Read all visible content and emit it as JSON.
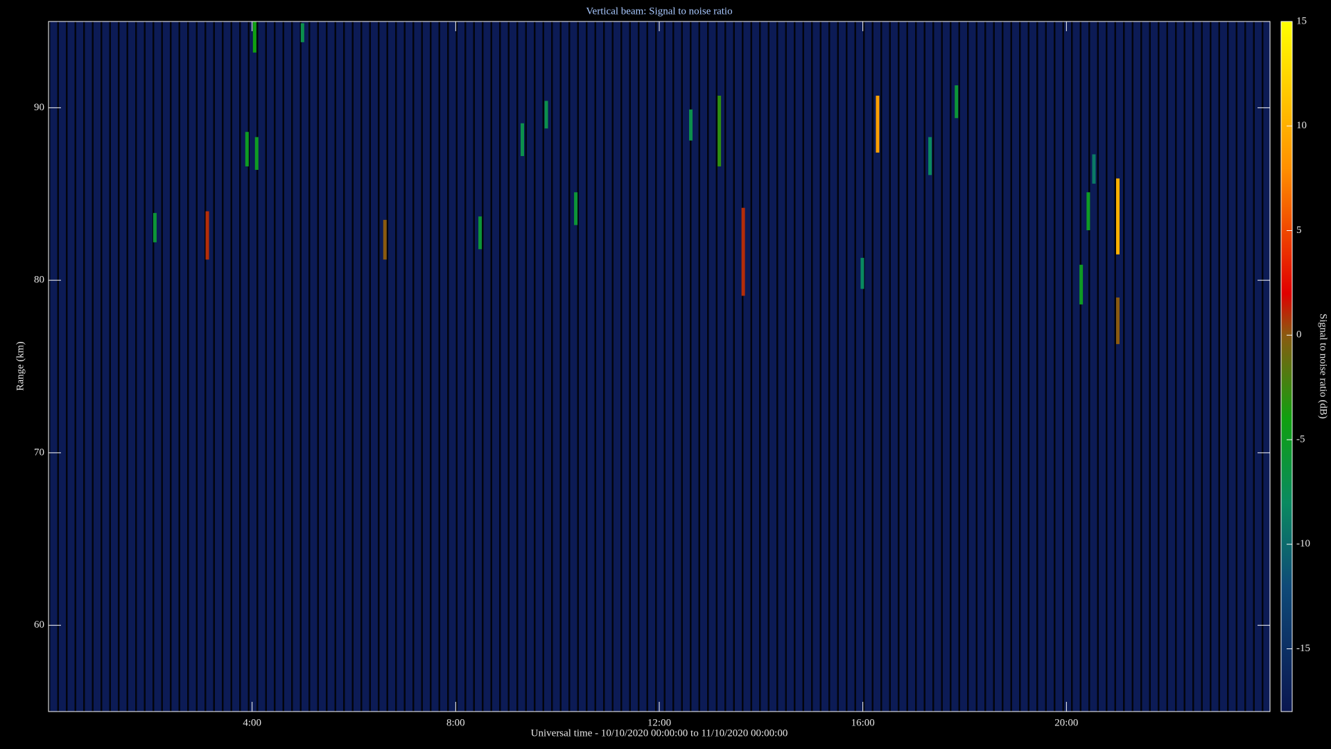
{
  "chart_data": {
    "type": "heatmap",
    "title": "Vertical beam: Signal to noise ratio",
    "x_label": "Universal time - 10/10/2020 00:00:00 to 11/10/2020 00:00:00",
    "y_label": "Range (km)",
    "colorbar_label": "Signal to noise ratio (dB)",
    "xlim": [
      0,
      24
    ],
    "xticks": [
      {
        "value": 4,
        "label": "4:00"
      },
      {
        "value": 8,
        "label": "8:00"
      },
      {
        "value": 12,
        "label": "12:00"
      },
      {
        "value": 16,
        "label": "16:00"
      },
      {
        "value": 20,
        "label": "20:00"
      }
    ],
    "ylim": [
      55,
      95
    ],
    "yticks": [
      60,
      70,
      80,
      90
    ],
    "clim": [
      -18,
      15
    ],
    "cticks": [
      -15,
      -10,
      -5,
      0,
      5,
      10,
      15
    ],
    "background_color": "#0c1b55",
    "colormap": [
      {
        "value": -18,
        "color": "#0a1650"
      },
      {
        "value": -12,
        "color": "#0f4a78"
      },
      {
        "value": -8,
        "color": "#0a8a60"
      },
      {
        "value": -4,
        "color": "#10a010"
      },
      {
        "value": 0,
        "color": "#8a5a10"
      },
      {
        "value": 2,
        "color": "#e00000"
      },
      {
        "value": 8,
        "color": "#ff9000"
      },
      {
        "value": 15,
        "color": "#ffff00"
      }
    ],
    "segments": [
      {
        "time": 2.09,
        "range": [
          82.2,
          83.9
        ],
        "snr": -6
      },
      {
        "time": 3.12,
        "range": [
          81.2,
          84.0
        ],
        "snr": 1
      },
      {
        "time": 3.9,
        "range": [
          86.6,
          88.6
        ],
        "snr": -5
      },
      {
        "time": 4.09,
        "range": [
          86.4,
          88.3
        ],
        "snr": -5
      },
      {
        "time": 4.05,
        "range": [
          93.2,
          95.0
        ],
        "snr": -4
      },
      {
        "time": 4.99,
        "range": [
          93.8,
          94.9
        ],
        "snr": -7
      },
      {
        "time": 6.61,
        "range": [
          81.2,
          83.5
        ],
        "snr": 0
      },
      {
        "time": 8.48,
        "range": [
          81.8,
          83.7
        ],
        "snr": -6
      },
      {
        "time": 9.31,
        "range": [
          87.2,
          89.1
        ],
        "snr": -7
      },
      {
        "time": 9.78,
        "range": [
          88.8,
          90.4
        ],
        "snr": -7
      },
      {
        "time": 10.36,
        "range": [
          83.2,
          85.1
        ],
        "snr": -6
      },
      {
        "time": 12.62,
        "range": [
          88.1,
          89.9
        ],
        "snr": -7
      },
      {
        "time": 13.18,
        "range": [
          86.6,
          90.7
        ],
        "snr": -3
      },
      {
        "time": 13.65,
        "range": [
          79.1,
          84.2
        ],
        "snr": 1
      },
      {
        "time": 15.99,
        "range": [
          79.5,
          81.3
        ],
        "snr": -8
      },
      {
        "time": 16.29,
        "range": [
          87.4,
          90.7
        ],
        "snr": 9
      },
      {
        "time": 17.32,
        "range": [
          86.1,
          88.3
        ],
        "snr": -8
      },
      {
        "time": 17.84,
        "range": [
          89.4,
          91.3
        ],
        "snr": -6
      },
      {
        "time": 20.29,
        "range": [
          78.6,
          80.9
        ],
        "snr": -5
      },
      {
        "time": 20.43,
        "range": [
          82.9,
          85.1
        ],
        "snr": -5
      },
      {
        "time": 20.54,
        "range": [
          85.6,
          87.3
        ],
        "snr": -9
      },
      {
        "time": 21.01,
        "range": [
          81.5,
          85.9
        ],
        "snr": 10
      },
      {
        "time": 21.01,
        "range": [
          76.3,
          79.0
        ],
        "snr": 0
      }
    ]
  }
}
